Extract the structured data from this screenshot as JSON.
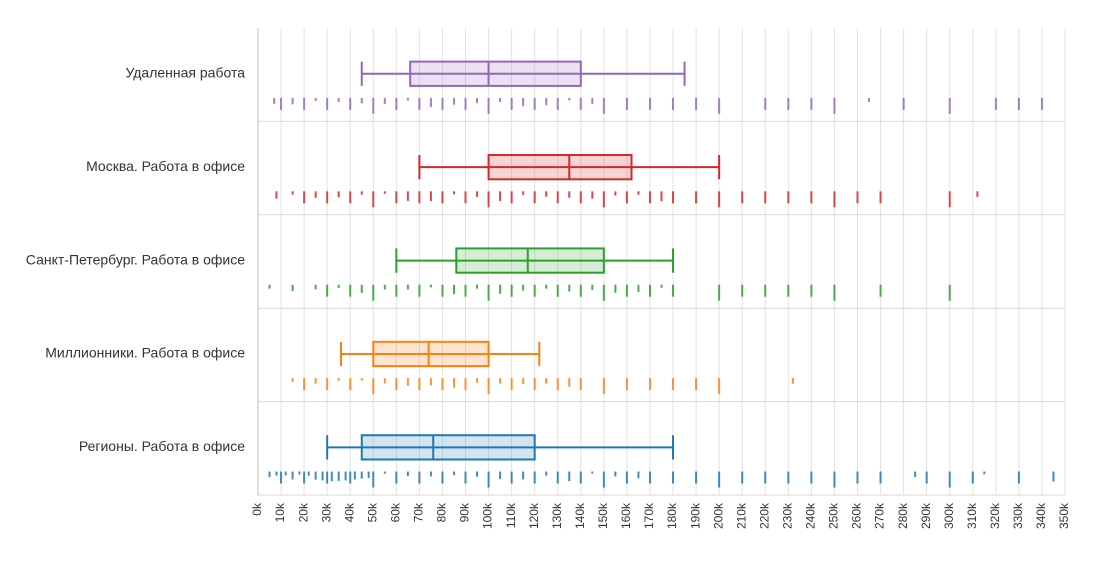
{
  "chart_data": {
    "type": "box",
    "orientation": "horizontal",
    "title": "",
    "xlabel": "",
    "ylabel": "",
    "xlim": [
      0,
      350000
    ],
    "x_ticks": [
      0,
      10000,
      20000,
      30000,
      40000,
      50000,
      60000,
      70000,
      80000,
      90000,
      100000,
      110000,
      120000,
      130000,
      140000,
      150000,
      160000,
      170000,
      180000,
      190000,
      200000,
      210000,
      220000,
      230000,
      240000,
      250000,
      260000,
      270000,
      280000,
      290000,
      300000,
      310000,
      320000,
      330000,
      340000,
      350000
    ],
    "x_tick_labels": [
      "0k",
      "10k",
      "20k",
      "30k",
      "40k",
      "50k",
      "60k",
      "70k",
      "80k",
      "90k",
      "100k",
      "110k",
      "120k",
      "130k",
      "140k",
      "150k",
      "160k",
      "170k",
      "180k",
      "190k",
      "200k",
      "210k",
      "220k",
      "230k",
      "240k",
      "250k",
      "260k",
      "270k",
      "280k",
      "290k",
      "300k",
      "310k",
      "320k",
      "330k",
      "340k",
      "350k"
    ],
    "grid": true,
    "series": [
      {
        "name": "Удаленная работа",
        "color": "#9467bd",
        "box": {
          "whisker_low": 45000,
          "q1": 66000,
          "median": 100000,
          "q3": 140000,
          "whisker_high": 185000
        },
        "strip_values": [
          7000,
          10000,
          15000,
          20000,
          25000,
          30000,
          35000,
          40000,
          45000,
          50000,
          55000,
          60000,
          65000,
          70000,
          75000,
          80000,
          85000,
          90000,
          95000,
          100000,
          105000,
          110000,
          115000,
          120000,
          125000,
          130000,
          135000,
          140000,
          145000,
          150000,
          160000,
          170000,
          180000,
          190000,
          200000,
          220000,
          230000,
          240000,
          250000,
          265000,
          280000,
          300000,
          320000,
          330000,
          340000
        ]
      },
      {
        "name": "Москва. Работа в офисе",
        "color": "#d62728",
        "box": {
          "whisker_low": 70000,
          "q1": 100000,
          "median": 135000,
          "q3": 162000,
          "whisker_high": 200000
        },
        "strip_values": [
          8000,
          15000,
          20000,
          25000,
          30000,
          35000,
          40000,
          45000,
          50000,
          55000,
          60000,
          65000,
          70000,
          75000,
          80000,
          85000,
          90000,
          95000,
          100000,
          105000,
          110000,
          115000,
          120000,
          125000,
          130000,
          135000,
          140000,
          145000,
          150000,
          155000,
          160000,
          165000,
          170000,
          175000,
          180000,
          190000,
          200000,
          210000,
          220000,
          230000,
          240000,
          250000,
          260000,
          270000,
          300000,
          312000
        ]
      },
      {
        "name": "Санкт-Петербург. Работа в офисе",
        "color": "#2ca02c",
        "box": {
          "whisker_low": 60000,
          "q1": 86000,
          "median": 117000,
          "q3": 150000,
          "whisker_high": 180000
        },
        "strip_values": [
          5000,
          15000,
          25000,
          30000,
          35000,
          40000,
          45000,
          50000,
          55000,
          60000,
          65000,
          70000,
          75000,
          80000,
          85000,
          90000,
          95000,
          100000,
          105000,
          110000,
          115000,
          120000,
          125000,
          130000,
          135000,
          140000,
          145000,
          150000,
          155000,
          160000,
          165000,
          170000,
          175000,
          180000,
          200000,
          210000,
          220000,
          230000,
          240000,
          250000,
          270000,
          300000
        ]
      },
      {
        "name": "Миллионники. Работа в офисе",
        "color": "#ff7f0e",
        "box": {
          "whisker_low": 36000,
          "q1": 50000,
          "median": 74000,
          "q3": 100000,
          "whisker_high": 122000
        },
        "strip_values": [
          15000,
          20000,
          25000,
          30000,
          35000,
          40000,
          45000,
          50000,
          55000,
          60000,
          65000,
          70000,
          75000,
          80000,
          85000,
          90000,
          95000,
          100000,
          105000,
          110000,
          115000,
          120000,
          125000,
          130000,
          135000,
          140000,
          150000,
          160000,
          170000,
          180000,
          190000,
          200000,
          232000
        ]
      },
      {
        "name": "Регионы. Работа в офисе",
        "color": "#1f77b4",
        "box": {
          "whisker_low": 30000,
          "q1": 45000,
          "median": 76000,
          "q3": 120000,
          "whisker_high": 180000
        },
        "strip_values": [
          5000,
          8000,
          10000,
          12000,
          15000,
          18000,
          20000,
          22000,
          25000,
          28000,
          30000,
          32000,
          35000,
          38000,
          40000,
          42000,
          45000,
          48000,
          50000,
          55000,
          60000,
          65000,
          70000,
          75000,
          80000,
          85000,
          90000,
          95000,
          100000,
          105000,
          110000,
          115000,
          120000,
          125000,
          130000,
          135000,
          140000,
          145000,
          150000,
          155000,
          160000,
          165000,
          170000,
          180000,
          190000,
          200000,
          210000,
          220000,
          230000,
          240000,
          250000,
          260000,
          270000,
          285000,
          290000,
          300000,
          310000,
          315000,
          330000,
          345000
        ]
      }
    ]
  }
}
